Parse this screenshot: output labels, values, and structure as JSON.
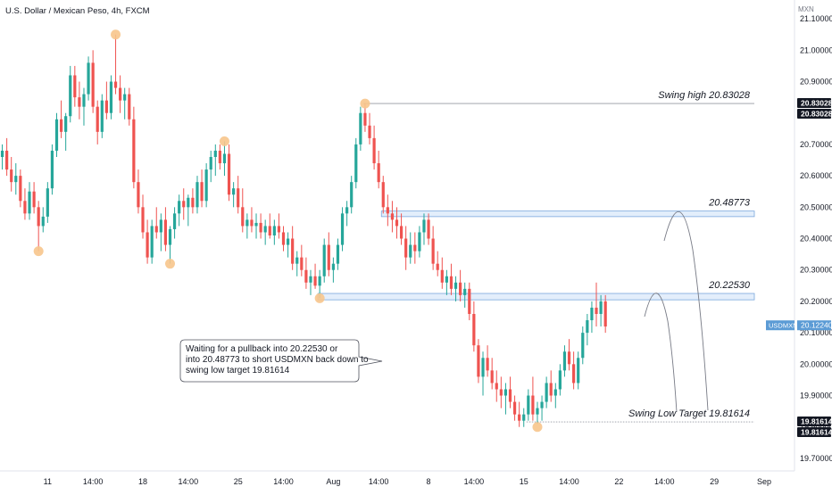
{
  "header": {
    "title": "U.S. Dollar / Mexican Peso, 4h, FXCM"
  },
  "chart_data": {
    "type": "candlestick",
    "symbol": "USDMXN",
    "currency_label": "MXN",
    "ylim": [
      19.66,
      21.16
    ],
    "y_ticks": [
      "21.10000",
      "21.00000",
      "20.90000",
      "20.80000",
      "20.70000",
      "20.60000",
      "20.50000",
      "20.40000",
      "20.30000",
      "20.20000",
      "20.10000",
      "20.00000",
      "19.90000",
      "19.80000",
      "19.70000"
    ],
    "y_tick_values": [
      21.1,
      21.0,
      20.9,
      20.8,
      20.7,
      20.6,
      20.5,
      20.4,
      20.3,
      20.2,
      20.1,
      20.0,
      19.9,
      19.8,
      19.7
    ],
    "x_ticks": [
      "11",
      "14:00",
      "18",
      "14:00",
      "25",
      "14:00",
      "Aug",
      "14:00",
      "8",
      "14:00",
      "15",
      "14:00",
      "22",
      "14:00",
      "29",
      "Sep"
    ],
    "x_tick_index": [
      10,
      20,
      31,
      41,
      52,
      62,
      73,
      83,
      94,
      104,
      115,
      125,
      136,
      146,
      157,
      168
    ],
    "last_price": {
      "label": "USDMXN",
      "value": "20.12240"
    },
    "price_tags": [
      {
        "value": "20.83028",
        "price": 20.83028
      },
      {
        "value": "20.83028",
        "price": 20.83028
      },
      {
        "value": "19.81614",
        "price": 19.81614
      },
      {
        "value": "19.81614",
        "price": 19.81614
      }
    ],
    "levels": [
      {
        "label": "Swing high 20.83028",
        "price": 20.83028,
        "style": "solid",
        "from_index": 80
      },
      {
        "label": "20.48773",
        "price": 20.48773,
        "style": "zone",
        "band": [
          20.48773,
          20.47
        ],
        "from_index": 84
      },
      {
        "label": "20.22530",
        "price": 20.2253,
        "style": "zone",
        "band": [
          20.2253,
          20.205
        ],
        "from_index": 70
      },
      {
        "label": "Swing Low Target 19.81614",
        "price": 19.81614,
        "style": "dotted",
        "from_index": 116
      }
    ],
    "swing_markers": [
      {
        "index": 8,
        "price": 20.36
      },
      {
        "index": 25,
        "price": 21.05
      },
      {
        "index": 37,
        "price": 20.32
      },
      {
        "index": 49,
        "price": 20.71
      },
      {
        "index": 70,
        "price": 20.21
      },
      {
        "index": 80,
        "price": 20.83
      },
      {
        "index": 118,
        "price": 19.8
      }
    ],
    "callout": {
      "lines": [
        "Waiting for a pullback into 20.22530 or",
        "into 20.48773 to short USDMXN back down to",
        "swing low target 19.81614"
      ]
    },
    "colors": {
      "up": "#26a69a",
      "down": "#ef5350",
      "zone_fill": "#e3eefb",
      "zone_stroke": "#7aa7dd",
      "marker": "#f7c58c",
      "last_price": "#5b9bd5"
    },
    "candles": [
      [
        20.66,
        20.7,
        20.62,
        20.68
      ],
      [
        20.68,
        20.72,
        20.6,
        20.62
      ],
      [
        20.62,
        20.66,
        20.55,
        20.58
      ],
      [
        20.58,
        20.64,
        20.54,
        20.6
      ],
      [
        20.6,
        20.62,
        20.5,
        20.52
      ],
      [
        20.52,
        20.56,
        20.46,
        20.48
      ],
      [
        20.48,
        20.58,
        20.46,
        20.55
      ],
      [
        20.55,
        20.58,
        20.48,
        20.5
      ],
      [
        20.5,
        20.52,
        20.36,
        20.44
      ],
      [
        20.44,
        20.5,
        20.42,
        20.47
      ],
      [
        20.47,
        20.58,
        20.45,
        20.56
      ],
      [
        20.56,
        20.7,
        20.54,
        20.68
      ],
      [
        20.68,
        20.8,
        20.66,
        20.78
      ],
      [
        20.78,
        20.84,
        20.72,
        20.74
      ],
      [
        20.74,
        20.8,
        20.68,
        20.79
      ],
      [
        20.79,
        20.95,
        20.77,
        20.92
      ],
      [
        20.92,
        20.95,
        20.82,
        20.85
      ],
      [
        20.85,
        20.9,
        20.78,
        20.82
      ],
      [
        20.82,
        20.88,
        20.76,
        20.86
      ],
      [
        20.86,
        20.98,
        20.84,
        20.96
      ],
      [
        20.96,
        21.0,
        20.8,
        20.82
      ],
      [
        20.82,
        20.84,
        20.7,
        20.74
      ],
      [
        20.74,
        20.86,
        20.72,
        20.84
      ],
      [
        20.84,
        20.9,
        20.78,
        20.8
      ],
      [
        20.8,
        20.92,
        20.78,
        20.9
      ],
      [
        20.9,
        21.05,
        20.86,
        20.88
      ],
      [
        20.88,
        20.92,
        20.8,
        20.84
      ],
      [
        20.84,
        20.88,
        20.78,
        20.86
      ],
      [
        20.86,
        20.88,
        20.76,
        20.78
      ],
      [
        20.78,
        20.82,
        20.56,
        20.58
      ],
      [
        20.58,
        20.62,
        20.48,
        20.5
      ],
      [
        20.5,
        20.54,
        20.4,
        20.42
      ],
      [
        20.42,
        20.46,
        20.32,
        20.34
      ],
      [
        20.34,
        20.46,
        20.32,
        20.44
      ],
      [
        20.44,
        20.5,
        20.4,
        20.42
      ],
      [
        20.42,
        20.48,
        20.36,
        20.46
      ],
      [
        20.46,
        20.5,
        20.36,
        20.38
      ],
      [
        20.38,
        20.44,
        20.32,
        20.43
      ],
      [
        20.43,
        20.5,
        20.4,
        20.48
      ],
      [
        20.48,
        20.54,
        20.44,
        20.52
      ],
      [
        20.52,
        20.56,
        20.46,
        20.5
      ],
      [
        20.5,
        20.54,
        20.44,
        20.53
      ],
      [
        20.53,
        20.56,
        20.48,
        20.5
      ],
      [
        20.5,
        20.6,
        20.48,
        20.58
      ],
      [
        20.58,
        20.62,
        20.5,
        20.52
      ],
      [
        20.52,
        20.64,
        20.5,
        20.62
      ],
      [
        20.62,
        20.68,
        20.58,
        20.66
      ],
      [
        20.66,
        20.7,
        20.6,
        20.68
      ],
      [
        20.68,
        20.7,
        20.62,
        20.64
      ],
      [
        20.64,
        20.71,
        20.6,
        20.67
      ],
      [
        20.67,
        20.7,
        20.52,
        20.54
      ],
      [
        20.54,
        20.58,
        20.5,
        20.56
      ],
      [
        20.56,
        20.6,
        20.48,
        20.5
      ],
      [
        20.5,
        20.56,
        20.42,
        20.44
      ],
      [
        20.44,
        20.48,
        20.4,
        20.46
      ],
      [
        20.46,
        20.5,
        20.42,
        20.44
      ],
      [
        20.44,
        20.48,
        20.4,
        20.45
      ],
      [
        20.45,
        20.48,
        20.4,
        20.42
      ],
      [
        20.42,
        20.46,
        20.38,
        20.44
      ],
      [
        20.44,
        20.48,
        20.4,
        20.41
      ],
      [
        20.41,
        20.46,
        20.38,
        20.44
      ],
      [
        20.44,
        20.48,
        20.4,
        20.42
      ],
      [
        20.42,
        20.44,
        20.36,
        20.38
      ],
      [
        20.38,
        20.42,
        20.34,
        20.4
      ],
      [
        20.4,
        20.44,
        20.3,
        20.32
      ],
      [
        20.32,
        20.36,
        20.28,
        20.34
      ],
      [
        20.34,
        20.38,
        20.28,
        20.3
      ],
      [
        20.3,
        20.34,
        20.24,
        20.26
      ],
      [
        20.26,
        20.3,
        20.22,
        20.28
      ],
      [
        20.28,
        20.32,
        20.24,
        20.25
      ],
      [
        20.25,
        20.3,
        20.21,
        20.28
      ],
      [
        20.28,
        20.4,
        20.26,
        20.38
      ],
      [
        20.38,
        20.42,
        20.28,
        20.3
      ],
      [
        20.3,
        20.34,
        20.26,
        20.32
      ],
      [
        20.32,
        20.4,
        20.3,
        20.38
      ],
      [
        20.38,
        20.5,
        20.36,
        20.48
      ],
      [
        20.48,
        20.52,
        20.44,
        20.5
      ],
      [
        20.5,
        20.6,
        20.48,
        20.58
      ],
      [
        20.58,
        20.72,
        20.56,
        20.7
      ],
      [
        20.7,
        20.82,
        20.68,
        20.8
      ],
      [
        20.8,
        20.83,
        20.74,
        20.76
      ],
      [
        20.76,
        20.8,
        20.7,
        20.72
      ],
      [
        20.72,
        20.76,
        20.62,
        20.64
      ],
      [
        20.64,
        20.68,
        20.56,
        20.58
      ],
      [
        20.58,
        20.6,
        20.48,
        20.5
      ],
      [
        20.5,
        20.54,
        20.44,
        20.48
      ],
      [
        20.48,
        20.52,
        20.42,
        20.46
      ],
      [
        20.46,
        20.5,
        20.4,
        20.44
      ],
      [
        20.44,
        20.48,
        20.38,
        20.4
      ],
      [
        20.4,
        20.44,
        20.3,
        20.34
      ],
      [
        20.34,
        20.42,
        20.32,
        20.38
      ],
      [
        20.38,
        20.42,
        20.32,
        20.36
      ],
      [
        20.36,
        20.44,
        20.34,
        20.42
      ],
      [
        20.42,
        20.48,
        20.38,
        20.46
      ],
      [
        20.46,
        20.48,
        20.38,
        20.4
      ],
      [
        20.4,
        20.44,
        20.3,
        20.32
      ],
      [
        20.32,
        20.36,
        20.28,
        20.3
      ],
      [
        20.3,
        20.34,
        20.24,
        20.26
      ],
      [
        20.26,
        20.3,
        20.22,
        20.28
      ],
      [
        20.28,
        20.32,
        20.22,
        20.24
      ],
      [
        20.24,
        20.28,
        20.2,
        20.26
      ],
      [
        20.26,
        20.3,
        20.2,
        20.22
      ],
      [
        20.22,
        20.26,
        20.18,
        20.24
      ],
      [
        20.24,
        20.26,
        20.14,
        20.16
      ],
      [
        20.16,
        20.2,
        20.04,
        20.06
      ],
      [
        20.06,
        20.08,
        19.94,
        19.96
      ],
      [
        19.96,
        20.04,
        19.9,
        20.02
      ],
      [
        20.02,
        20.06,
        19.96,
        19.98
      ],
      [
        19.98,
        20.02,
        19.92,
        19.94
      ],
      [
        19.94,
        19.98,
        19.88,
        19.92
      ],
      [
        19.92,
        19.96,
        19.86,
        19.9
      ],
      [
        19.9,
        19.94,
        19.84,
        19.92
      ],
      [
        19.92,
        19.96,
        19.86,
        19.88
      ],
      [
        19.88,
        19.9,
        19.82,
        19.84
      ],
      [
        19.84,
        19.88,
        19.8,
        19.82
      ],
      [
        19.82,
        19.86,
        19.8,
        19.84
      ],
      [
        19.84,
        19.92,
        19.82,
        19.9
      ],
      [
        19.9,
        19.96,
        19.82,
        19.84
      ],
      [
        19.84,
        19.88,
        19.81,
        19.86
      ],
      [
        19.86,
        19.9,
        19.82,
        19.88
      ],
      [
        19.88,
        19.96,
        19.86,
        19.94
      ],
      [
        19.94,
        19.98,
        19.88,
        19.9
      ],
      [
        19.9,
        19.94,
        19.86,
        19.92
      ],
      [
        19.92,
        20.0,
        19.9,
        19.98
      ],
      [
        19.98,
        20.06,
        19.96,
        20.04
      ],
      [
        20.04,
        20.08,
        19.98,
        20.0
      ],
      [
        20.0,
        20.04,
        19.92,
        19.94
      ],
      [
        19.94,
        20.04,
        19.92,
        20.02
      ],
      [
        20.02,
        20.12,
        20.0,
        20.1
      ],
      [
        20.1,
        20.16,
        20.06,
        20.14
      ],
      [
        20.14,
        20.2,
        20.1,
        20.18
      ],
      [
        20.18,
        20.26,
        20.12,
        20.16
      ],
      [
        20.16,
        20.22,
        20.12,
        20.2
      ],
      [
        20.2,
        20.22,
        20.1,
        20.12
      ]
    ]
  }
}
